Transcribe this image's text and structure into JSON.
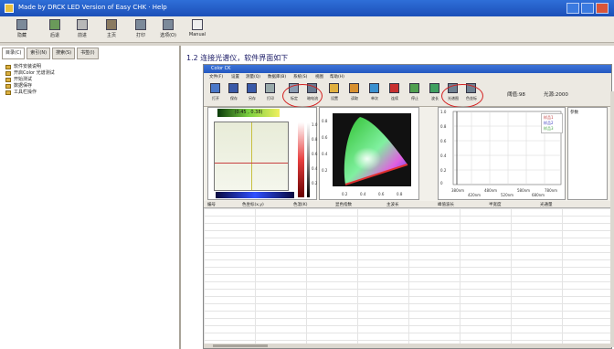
{
  "window": {
    "title": "Made by DRCK LED Version of Easy CHK · Help"
  },
  "main_toolbar": {
    "buttons": [
      {
        "label": "隐藏",
        "icon": "hide-icon"
      },
      {
        "label": "后退",
        "icon": "back-icon"
      },
      {
        "label": "前进",
        "icon": "forward-icon"
      },
      {
        "label": "主页",
        "icon": "home-icon"
      },
      {
        "label": "打印",
        "icon": "print-icon"
      },
      {
        "label": "选项(O)",
        "icon": "options-icon"
      },
      {
        "label": "Manual",
        "icon": "manual-icon"
      }
    ]
  },
  "left_pane": {
    "tabs": [
      "目录(C)",
      "索引(N)",
      "搜索(S)",
      "书签(I)"
    ],
    "tree": [
      "软件安装说明",
      "开启Color 光谱测试",
      "开始测试",
      "数据保存",
      "工具栏操作"
    ]
  },
  "content": {
    "heading": "1.2  连接光谱仪，软件界面如下"
  },
  "inner_app": {
    "title": "Color CK",
    "menu": [
      "文件(F)",
      "设置",
      "测量(Q)",
      "数据库(B)",
      "系统(S)",
      "视图",
      "帮助(H)"
    ],
    "toolbar": [
      "打开",
      "保存",
      "另存",
      "打印",
      "标定",
      "暗电流",
      "设置",
      "读取",
      "单次",
      "连续",
      "停止",
      "波长",
      "光谱图",
      "色坐标"
    ],
    "readouts": {
      "ref_value": "阈值:98",
      "integration": "光源:2000"
    },
    "colorbar_label": "(0.45 , 0.38)",
    "cie_ticks_y": [
      "0.8",
      "0.6",
      "0.4",
      "0.2"
    ],
    "cie_ticks_x": [
      "0.2",
      "0.4",
      "0.6",
      "0.8"
    ],
    "bar_ticks": [
      "1.0",
      "0.8",
      "0.6",
      "0.4",
      "0.2"
    ],
    "spectrum_x_ticks": [
      "380nm",
      "420nm",
      "480nm",
      "520nm",
      "580nm",
      "680nm",
      "780nm"
    ],
    "spectrum_y_ticks": [
      "1.0",
      "0.8",
      "0.6",
      "0.4",
      "0.2",
      "0"
    ],
    "legend": [
      "样品1",
      "样品2",
      "样品3"
    ],
    "info_header": "参数",
    "table_headers": [
      "编号",
      "色坐标(x,y)",
      "色温(K)",
      "显色指数",
      "主波长",
      "峰值波长",
      "半宽度",
      "光通量"
    ]
  },
  "colors": {
    "titlebar": "#2458c0",
    "highlight_ring": "#d42020"
  }
}
